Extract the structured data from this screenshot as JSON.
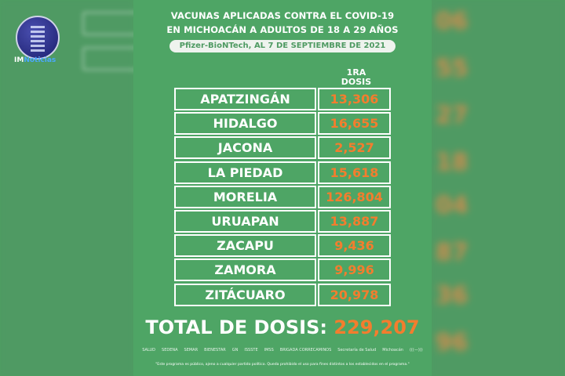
{
  "logo": {
    "prefix": "IM",
    "suffix": "Noticias"
  },
  "header": {
    "line1_regular": "VACUNAS APLICADAS ",
    "line1_bold": "CONTRA EL COVID-19",
    "line2": "EN MICHOACÁN A ADULTOS DE 18 A 29 AÑOS",
    "subtitle": "Pfizer-BioNTech, AL 7 DE SEPTIEMBRE DE 2021"
  },
  "column_header": {
    "line1": "1RA",
    "line2": "DOSIS"
  },
  "rows": [
    {
      "municipio": "APATZINGÁN",
      "dosis": "13,306"
    },
    {
      "municipio": "HIDALGO",
      "dosis": "16,655"
    },
    {
      "municipio": "JACONA",
      "dosis": "2,527"
    },
    {
      "municipio": "LA PIEDAD",
      "dosis": "15,618"
    },
    {
      "municipio": "MORELIA",
      "dosis": "126,804"
    },
    {
      "municipio": "URUAPAN",
      "dosis": "13,887"
    },
    {
      "municipio": "ZACAPU",
      "dosis": "9,436"
    },
    {
      "municipio": "ZAMORA",
      "dosis": "9,996"
    },
    {
      "municipio": "ZITÁCUARO",
      "dosis": "20,978"
    }
  ],
  "total": {
    "label": "TOTAL DE DOSIS: ",
    "value": "229,207"
  },
  "institution_logos": [
    "SALUD",
    "SEDENA",
    "SEMAR",
    "BIENESTAR",
    "GN",
    "ISSSTE",
    "IMSS",
    "BRIGADA CORRECAMINOS",
    "Secretaría de Salud",
    "Michoacán",
    "(((—)))"
  ],
  "disclaimer": "\"Este programa es público, ajeno a cualquier partido político. Queda prohibido el uso para fines distintos a los establecidos en el programa.\"",
  "colors": {
    "background": "#4ea565",
    "accent": "#f37d2e",
    "text": "#ffffff"
  }
}
